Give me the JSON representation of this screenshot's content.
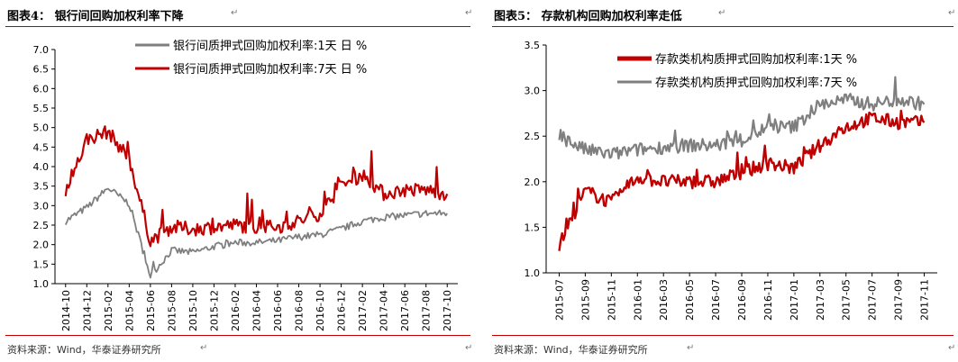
{
  "left": {
    "title": "图表4：  银行间回购加权利率下降",
    "source": "资料来源：Wind，华泰证券研究所",
    "chart_data": {
      "type": "line",
      "x": [
        "2014-10",
        "2014-12",
        "2015-02",
        "2015-04",
        "2015-06",
        "2015-08",
        "2015-10",
        "2015-12",
        "2016-02",
        "2016-04",
        "2016-06",
        "2016-08",
        "2016-10",
        "2016-12",
        "2017-02",
        "2017-04",
        "2017-06",
        "2017-08",
        "2017-10"
      ],
      "ylim": [
        1.0,
        7.0
      ],
      "yticks": [
        "1.0",
        "1.5",
        "2.0",
        "2.5",
        "3.0",
        "3.5",
        "4.0",
        "4.5",
        "5.0",
        "5.5",
        "6.0",
        "6.5",
        "7.0"
      ],
      "grid": false,
      "legend_position": "top",
      "series": [
        {
          "name": "银行间质押式回购加权利率:1天 日 %",
          "color": "#7f7f7f",
          "values": [
            2.6,
            2.95,
            3.45,
            3.05,
            1.2,
            1.85,
            1.8,
            1.95,
            2.05,
            2.05,
            2.1,
            2.2,
            2.25,
            2.4,
            2.6,
            2.7,
            2.75,
            2.8,
            2.8
          ]
        },
        {
          "name": "银行间质押式回购加权利率:7天 日 %",
          "color": "#c00000",
          "values": [
            3.3,
            4.7,
            4.9,
            4.2,
            2.1,
            2.45,
            2.4,
            2.45,
            2.5,
            2.45,
            2.45,
            2.6,
            2.8,
            3.5,
            3.8,
            3.3,
            3.4,
            3.4,
            3.3
          ]
        }
      ]
    }
  },
  "right": {
    "title": "图表5：  存款机构回购加权利率走低",
    "source": "资料来源：Wind，华泰证券研究所",
    "chart_data": {
      "type": "line",
      "x": [
        "2015-07",
        "2015-09",
        "2015-11",
        "2016-01",
        "2016-03",
        "2016-05",
        "2016-07",
        "2016-09",
        "2016-11",
        "2017-01",
        "2017-03",
        "2017-05",
        "2017-07",
        "2017-09",
        "2017-11"
      ],
      "ylim": [
        1.0,
        3.5
      ],
      "yticks": [
        "1.0",
        "1.5",
        "2.0",
        "2.5",
        "3.0",
        "3.5"
      ],
      "grid": false,
      "legend_position": "top-right",
      "series": [
        {
          "name": "存款类机构质押式回购加权利率:1天 %",
          "color": "#c00000",
          "values": [
            1.3,
            1.9,
            1.77,
            2.05,
            2.0,
            2.0,
            2.0,
            2.1,
            2.2,
            2.15,
            2.4,
            2.6,
            2.7,
            2.65,
            2.65
          ]
        },
        {
          "name": "存款类机构质押式回购加权利率:7天 %",
          "color": "#7f7f7f",
          "values": [
            2.5,
            2.35,
            2.3,
            2.35,
            2.38,
            2.4,
            2.4,
            2.45,
            2.6,
            2.6,
            2.85,
            2.9,
            2.85,
            2.9,
            2.85
          ]
        }
      ]
    }
  },
  "marks": {
    "para": "↵"
  }
}
